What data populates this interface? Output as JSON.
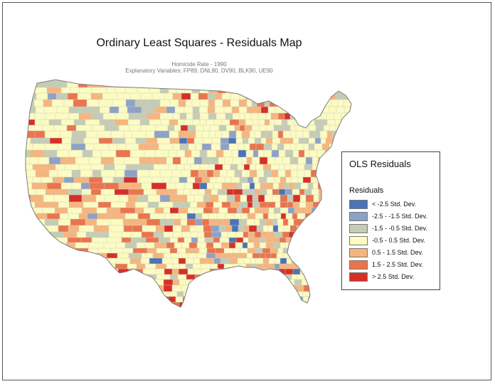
{
  "map": {
    "title": "Ordinary Least Squares - Residuals Map",
    "subtitle_line1": "Homicide Rate - 1990",
    "subtitle_line2": "Explanatory Variables: FP89, DNL90, DV90, BLK90, UE90",
    "region": "contiguous-united-states",
    "unit": "county",
    "colors": {
      "outline": "#8a8a8a",
      "county_line": "#cfcfc2",
      "background": "#ffffff"
    }
  },
  "legend": {
    "title": "OLS Residuals",
    "subtitle": "Residuals",
    "classes": [
      {
        "label": "< -2.5 Std. Dev.",
        "color": "#4a73b8"
      },
      {
        "label": "-2.5 - -1.5 Std. Dev.",
        "color": "#8ea2c6"
      },
      {
        "label": "-1.5 - -0.5 Std. Dev.",
        "color": "#c5ccb6"
      },
      {
        "label": "-0.5 - 0.5 Std. Dev.",
        "color": "#fcfbc2"
      },
      {
        "label": "0.5 - 1.5 Std. Dev.",
        "color": "#f6b57e"
      },
      {
        "label": "1.5 - 2.5 Std. Dev.",
        "color": "#ea744e"
      },
      {
        "label": "> 2.5 Std. Dev.",
        "color": "#d72f27"
      }
    ]
  }
}
